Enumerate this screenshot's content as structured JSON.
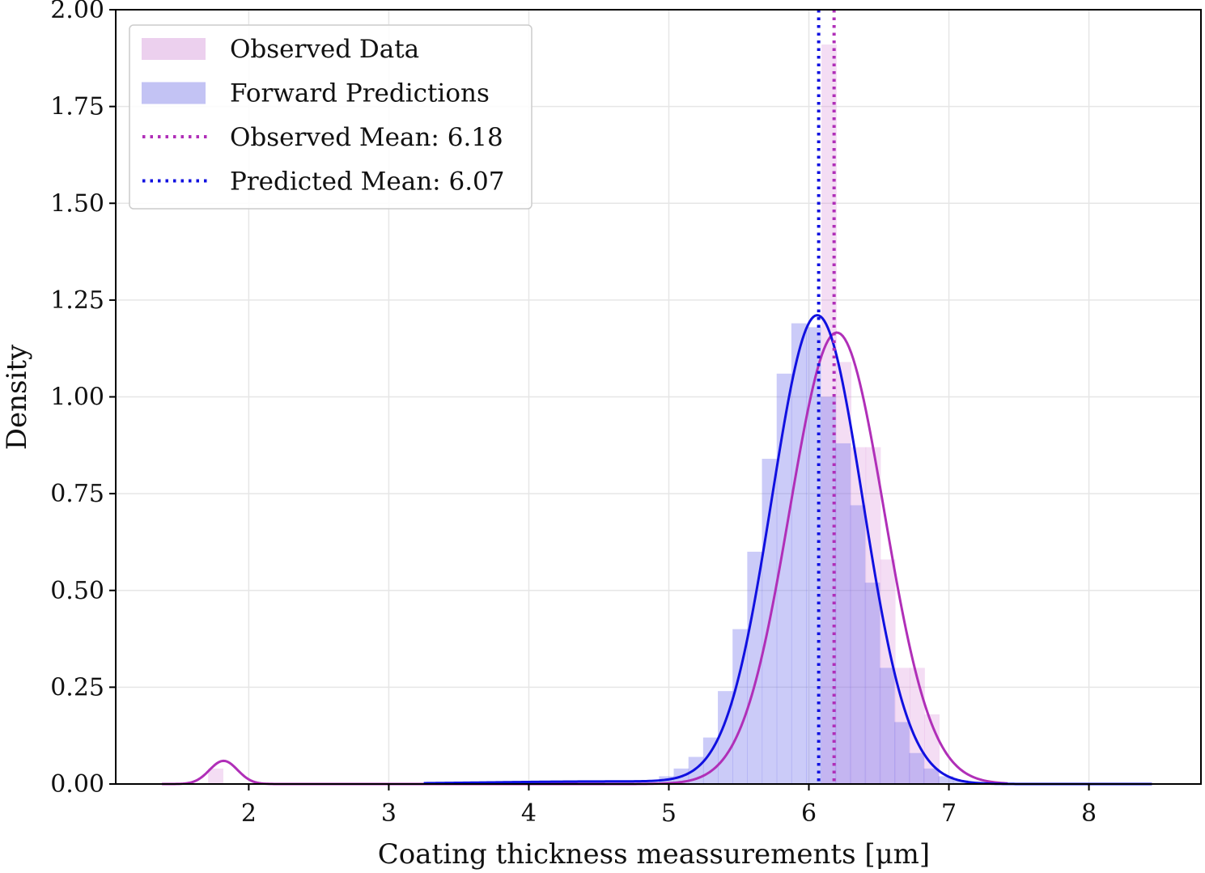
{
  "chart_data": {
    "type": "histogram+kde",
    "xlabel": "Coating thickness meassurements [μm]",
    "ylabel": "Density",
    "xlim": [
      1.05,
      8.8
    ],
    "ylim": [
      0,
      2.0
    ],
    "x_ticks": [
      2,
      3,
      4,
      5,
      6,
      7,
      8
    ],
    "y_ticks": [
      0.0,
      0.25,
      0.5,
      0.75,
      1.0,
      1.25,
      1.5,
      1.75,
      2.0
    ],
    "x_tick_labels": [
      "2",
      "3",
      "4",
      "5",
      "6",
      "7",
      "8"
    ],
    "y_tick_labels": [
      "0.00",
      "0.25",
      "0.50",
      "0.75",
      "1.00",
      "1.25",
      "1.50",
      "1.75",
      "2.00"
    ],
    "grid": true,
    "legend_position": "top-left",
    "series": [
      {
        "name": "Observed Data",
        "kind": "histogram",
        "color": "#d98fd9",
        "opacity": 0.3,
        "bin_width": 0.105,
        "bins_left": [
          1.71,
          6.09,
          6.195,
          6.3,
          6.405,
          6.51,
          6.615,
          6.72,
          6.825
        ],
        "heights": [
          0.04,
          1.91,
          1.09,
          0.87,
          0.87,
          0.58,
          0.3,
          0.3,
          0.18
        ]
      },
      {
        "name": "Forward Predictions",
        "kind": "histogram",
        "color": "#6b6bea",
        "opacity": 0.35,
        "bin_width": 0.105,
        "bins_left": [
          4.93,
          5.035,
          5.14,
          5.245,
          5.35,
          5.455,
          5.56,
          5.665,
          5.77,
          5.875,
          5.98,
          6.085,
          6.19,
          6.295,
          6.4,
          6.505,
          6.61,
          6.715,
          6.82,
          6.925,
          7.03
        ],
        "heights": [
          0.02,
          0.04,
          0.07,
          0.12,
          0.24,
          0.4,
          0.6,
          0.84,
          1.06,
          1.19,
          1.18,
          1.0,
          0.88,
          0.72,
          0.52,
          0.3,
          0.16,
          0.08,
          0.04,
          0.02,
          0.01
        ]
      },
      {
        "name": "Observed KDE",
        "kind": "kde",
        "color": "#b02fb8",
        "components": [
          {
            "mean": 6.2,
            "sd": 0.337,
            "weight": 0.985
          },
          {
            "mean": 1.82,
            "sd": 0.1,
            "weight": 0.015
          }
        ],
        "x_range": [
          1.38,
          7.42
        ]
      },
      {
        "name": "Predicted KDE",
        "kind": "kde",
        "color": "#1010e0",
        "components": [
          {
            "mean": 6.06,
            "sd": 0.325,
            "weight": 0.985
          },
          {
            "mean": 4.6,
            "sd": 0.9,
            "weight": 0.015
          }
        ],
        "x_range": [
          3.25,
          8.45
        ]
      },
      {
        "name": "Observed Mean: 6.18",
        "kind": "vline",
        "x": 6.18,
        "color": "#b02fb8"
      },
      {
        "name": "Predicted Mean: 6.07",
        "kind": "vline",
        "x": 6.07,
        "color": "#1010e0"
      }
    ],
    "legend": [
      {
        "label": "Observed Data",
        "swatch": "patch",
        "color": "#ecd0ee"
      },
      {
        "label": "Forward Predictions",
        "swatch": "patch",
        "color": "#c3c3f4"
      },
      {
        "label": "Observed Mean: 6.18",
        "swatch": "dotted",
        "color": "#b02fb8"
      },
      {
        "label": "Predicted Mean: 6.07",
        "swatch": "dotted",
        "color": "#1010e0"
      }
    ]
  }
}
